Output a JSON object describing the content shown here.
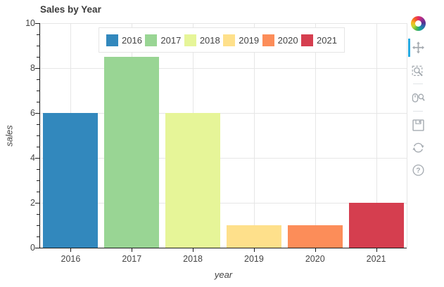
{
  "title": "Sales by Year",
  "chart_data": {
    "type": "bar",
    "title": "Sales by Year",
    "categories": [
      "2016",
      "2017",
      "2018",
      "2019",
      "2020",
      "2021"
    ],
    "values": [
      6,
      8.5,
      6,
      1,
      1,
      2
    ],
    "colors": [
      "#3288bd",
      "#99d594",
      "#e6f598",
      "#fee08b",
      "#fc8d59",
      "#d53e4f"
    ],
    "xlabel": "year",
    "ylabel": "sales",
    "ylim": [
      0,
      10
    ],
    "yticks": [
      0,
      2,
      4,
      6,
      8,
      10
    ],
    "minor_tick_step": 0.5,
    "bar_width_fraction": 0.9,
    "grid": true,
    "legend": {
      "position": "top-center",
      "entries": [
        "2016",
        "2017",
        "2018",
        "2019",
        "2020",
        "2021"
      ]
    }
  },
  "toolbar": {
    "logo_name": "bokeh-logo",
    "active_color": "#26aae1",
    "icon_color": "#a4aab0",
    "tools": [
      {
        "id": "pan",
        "icon": "pan-icon",
        "label": "Pan",
        "active": true,
        "divider_before": false
      },
      {
        "id": "box-zoom",
        "icon": "box-zoom-icon",
        "label": "Box Zoom",
        "active": false,
        "divider_before": false
      },
      {
        "id": "wheel-zoom",
        "icon": "wheel-zoom-icon",
        "label": "Wheel Zoom",
        "active": false,
        "divider_before": true
      },
      {
        "id": "save",
        "icon": "save-icon",
        "label": "Save",
        "active": false,
        "divider_before": true
      },
      {
        "id": "reset",
        "icon": "reset-icon",
        "label": "Reset",
        "active": false,
        "divider_before": false
      },
      {
        "id": "help",
        "icon": "help-icon",
        "label": "Help",
        "active": false,
        "divider_before": false
      }
    ]
  }
}
